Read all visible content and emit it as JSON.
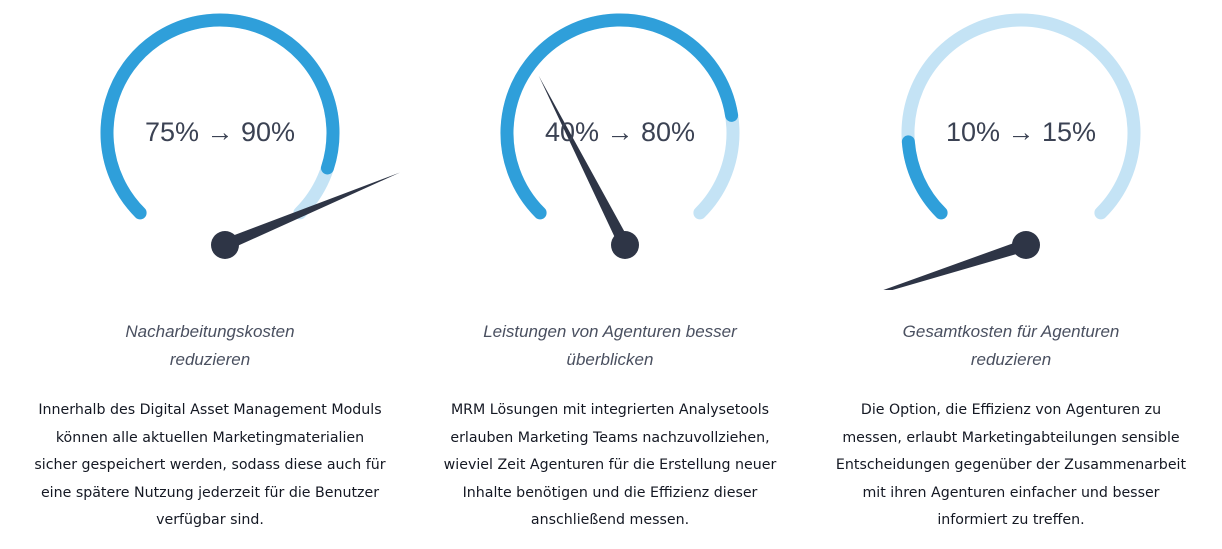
{
  "colors": {
    "arc_dark": "#2f9fda",
    "arc_light": "#c4e3f5",
    "needle": "#2e3546"
  },
  "gauges": [
    {
      "value_text": "75% → 90%",
      "from_percent": 75,
      "to_percent": 90,
      "subtitle_lines": [
        "Nacharbeitungskosten",
        "reduzieren"
      ],
      "description_lines": [
        "Innerhalb des Digital Asset Management Moduls",
        "können alle aktuellen Marketingmaterialien",
        "sicher gespeichert werden, sodass diese auch für",
        "eine spätere Nutzung jederzeit für die Benutzer",
        "verfügbar sind."
      ]
    },
    {
      "value_text": "40% → 80%",
      "from_percent": 40,
      "to_percent": 80,
      "subtitle_lines": [
        "Leistungen von Agenturen besser",
        "überblicken"
      ],
      "description_lines": [
        "MRM Lösungen mit integrierten Analysetools",
        "erlauben Marketing Teams nachzuvollziehen,",
        "wieviel Zeit Agenturen für die Erstellung neuer",
        "Inhalte benötigen und die Effizienz dieser",
        "anschließend messen."
      ]
    },
    {
      "value_text": "10% → 15%",
      "from_percent": 10,
      "to_percent": 15,
      "subtitle_lines": [
        "Gesamtkosten für Agenturen",
        "reduzieren"
      ],
      "description_lines": [
        "Die Option, die Effizienz von Agenturen zu",
        "messen, erlaubt Marketingabteilungen sensible",
        "Entscheidungen gegenüber der Zusammenarbeit",
        "mit ihren Agenturen einfacher und besser",
        "informiert zu treffen."
      ]
    }
  ]
}
